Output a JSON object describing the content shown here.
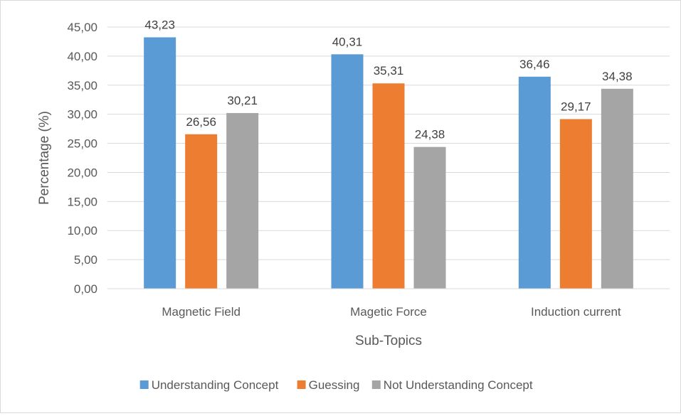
{
  "chart_data": {
    "type": "bar",
    "title": "",
    "xlabel": "Sub-Topics",
    "ylabel": "Percentage (%)",
    "ylim": [
      0,
      45
    ],
    "yticks": [
      "0,00",
      "5,00",
      "10,00",
      "15,00",
      "20,00",
      "25,00",
      "30,00",
      "35,00",
      "40,00",
      "45,00"
    ],
    "grid": true,
    "legend_position": "bottom",
    "categories": [
      "Magnetic Field",
      "Magetic Force",
      "Induction current"
    ],
    "series": [
      {
        "name": "Understanding Concept",
        "color": "#5b9bd5",
        "values": [
          43.23,
          40.31,
          36.46
        ],
        "labels": [
          "43,23",
          "40,31",
          "36,46"
        ]
      },
      {
        "name": "Guessing",
        "color": "#ed7d31",
        "values": [
          26.56,
          35.31,
          29.17
        ],
        "labels": [
          "26,56",
          "35,31",
          "29,17"
        ]
      },
      {
        "name": "Not Understanding Concept",
        "color": "#a5a5a5",
        "values": [
          30.21,
          24.38,
          34.38
        ],
        "labels": [
          "30,21",
          "24,38",
          "34,38"
        ]
      }
    ]
  }
}
